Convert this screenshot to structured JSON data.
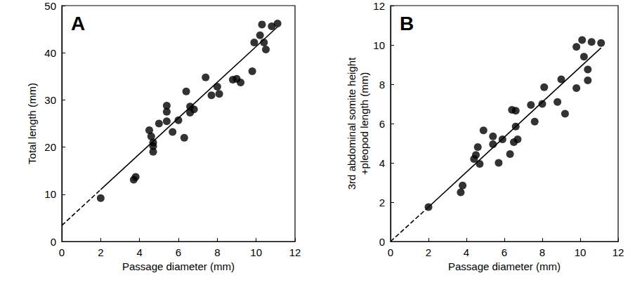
{
  "chart_data": [
    {
      "type": "scatter",
      "title": "A",
      "x_label": "Passage diameter (mm)",
      "y_label": "Total length (mm)",
      "color": "#000000",
      "marker": "circle",
      "grid": false,
      "xlim": [
        0,
        12
      ],
      "xticks": [
        0,
        2,
        4,
        6,
        8,
        10,
        12
      ],
      "ylim": [
        0,
        50
      ],
      "yticks": [
        0,
        10,
        20,
        30,
        40,
        50
      ],
      "x": [
        2.0,
        3.7,
        3.8,
        4.5,
        4.6,
        4.7,
        4.7,
        4.7,
        5.0,
        5.4,
        5.4,
        5.4,
        5.7,
        6.0,
        6.3,
        6.4,
        6.6,
        6.6,
        6.8,
        7.4,
        7.7,
        8.0,
        8.1,
        8.8,
        9.0,
        9.2,
        9.8,
        9.9,
        10.2,
        10.3,
        10.4,
        10.5,
        10.8,
        11.1
      ],
      "values": [
        9.2,
        13.1,
        13.7,
        23.6,
        22.3,
        21.0,
        20.2,
        19.0,
        25.0,
        27.5,
        28.8,
        25.5,
        23.2,
        25.7,
        22.0,
        31.8,
        27.3,
        28.6,
        28.0,
        34.8,
        31.0,
        32.8,
        31.3,
        34.3,
        34.5,
        33.7,
        36.1,
        42.2,
        43.7,
        46.0,
        42.2,
        40.7,
        45.6,
        46.2
      ],
      "lines": [
        {
          "x": [
            0,
            2.0
          ],
          "values": [
            3.4,
            11.0
          ],
          "line_style": "dashed"
        },
        {
          "x": [
            2.0,
            11.1
          ],
          "values": [
            11.0,
            45.5
          ],
          "line_style": "solid"
        }
      ]
    },
    {
      "type": "scatter",
      "title": "B",
      "x_label": "Passage diameter (mm)",
      "y_label": "3rd abdominal somite height +pleopod length (mm)",
      "color": "#000000",
      "marker": "circle",
      "grid": false,
      "xlim": [
        0,
        12
      ],
      "xticks": [
        0,
        2,
        4,
        6,
        8,
        10,
        12
      ],
      "ylim": [
        0,
        12
      ],
      "yticks": [
        0,
        2,
        4,
        6,
        8,
        10,
        12
      ],
      "x": [
        2.0,
        3.7,
        3.8,
        4.4,
        4.5,
        4.6,
        4.7,
        4.9,
        5.4,
        5.4,
        5.7,
        5.9,
        6.3,
        6.4,
        6.5,
        6.6,
        6.6,
        6.7,
        7.4,
        7.6,
        8.0,
        8.1,
        8.8,
        9.0,
        9.2,
        9.8,
        9.8,
        10.1,
        10.2,
        10.4,
        10.4,
        10.6,
        11.1
      ],
      "values": [
        1.75,
        2.5,
        2.85,
        4.2,
        4.4,
        4.8,
        3.95,
        5.65,
        5.35,
        4.95,
        4.0,
        5.2,
        4.45,
        6.7,
        5.05,
        5.85,
        6.65,
        5.2,
        6.95,
        6.1,
        7.0,
        7.85,
        7.1,
        8.25,
        6.5,
        7.8,
        9.9,
        10.25,
        9.4,
        8.2,
        8.75,
        10.15,
        10.1
      ],
      "lines": [
        {
          "x": [
            0,
            2.0
          ],
          "values": [
            0.0,
            1.75
          ],
          "line_style": "dashed"
        },
        {
          "x": [
            2.0,
            11.1
          ],
          "values": [
            1.75,
            9.85
          ],
          "line_style": "solid"
        }
      ]
    }
  ]
}
